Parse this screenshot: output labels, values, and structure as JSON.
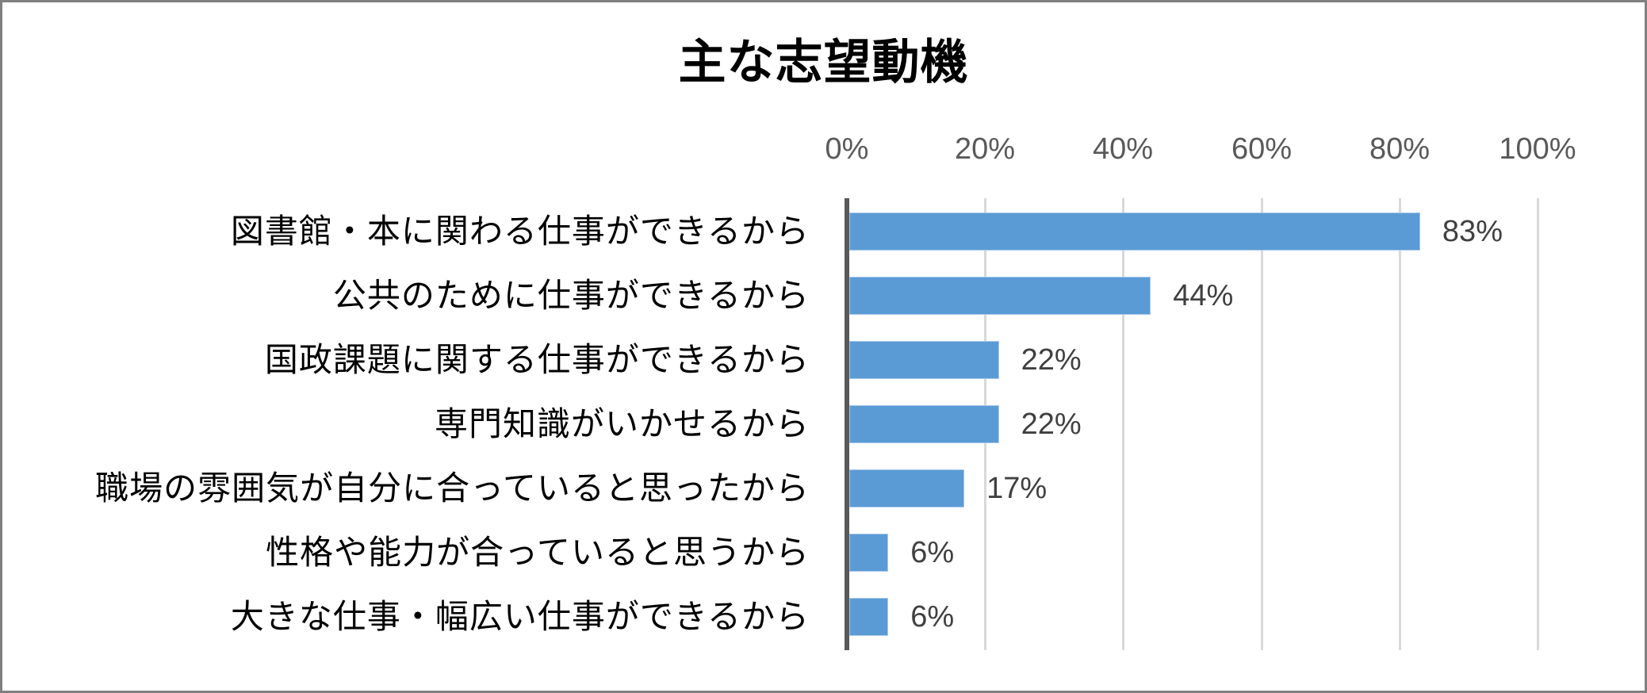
{
  "chart_data": {
    "type": "bar",
    "orientation": "horizontal",
    "title": "主な志望動機",
    "xlabel": "",
    "ylabel": "",
    "xlim": [
      0,
      100
    ],
    "x_unit": "%",
    "grid": true,
    "legend": null,
    "tick_labels": [
      "0%",
      "20%",
      "40%",
      "60%",
      "80%",
      "100%"
    ],
    "categories": [
      "図書館・本に関わる仕事ができるから",
      "公共のために仕事ができるから",
      "国政課題に関する仕事ができるから",
      "専門知識がいかせるから",
      "職場の雰囲気が自分に合っていると思ったから",
      "性格や能力が合っていると思うから",
      "大きな仕事・幅広い仕事ができるから"
    ],
    "values": [
      83,
      44,
      22,
      22,
      17,
      6,
      6
    ],
    "value_labels": [
      "83%",
      "44%",
      "22%",
      "22%",
      "17%",
      "6%",
      "6%"
    ],
    "colors": {
      "bar": "#5B9BD5",
      "axis": "#595959",
      "grid": "#D9D9D9",
      "tick_text": "#595959",
      "value_text": "#404040",
      "border": "#808080"
    }
  }
}
